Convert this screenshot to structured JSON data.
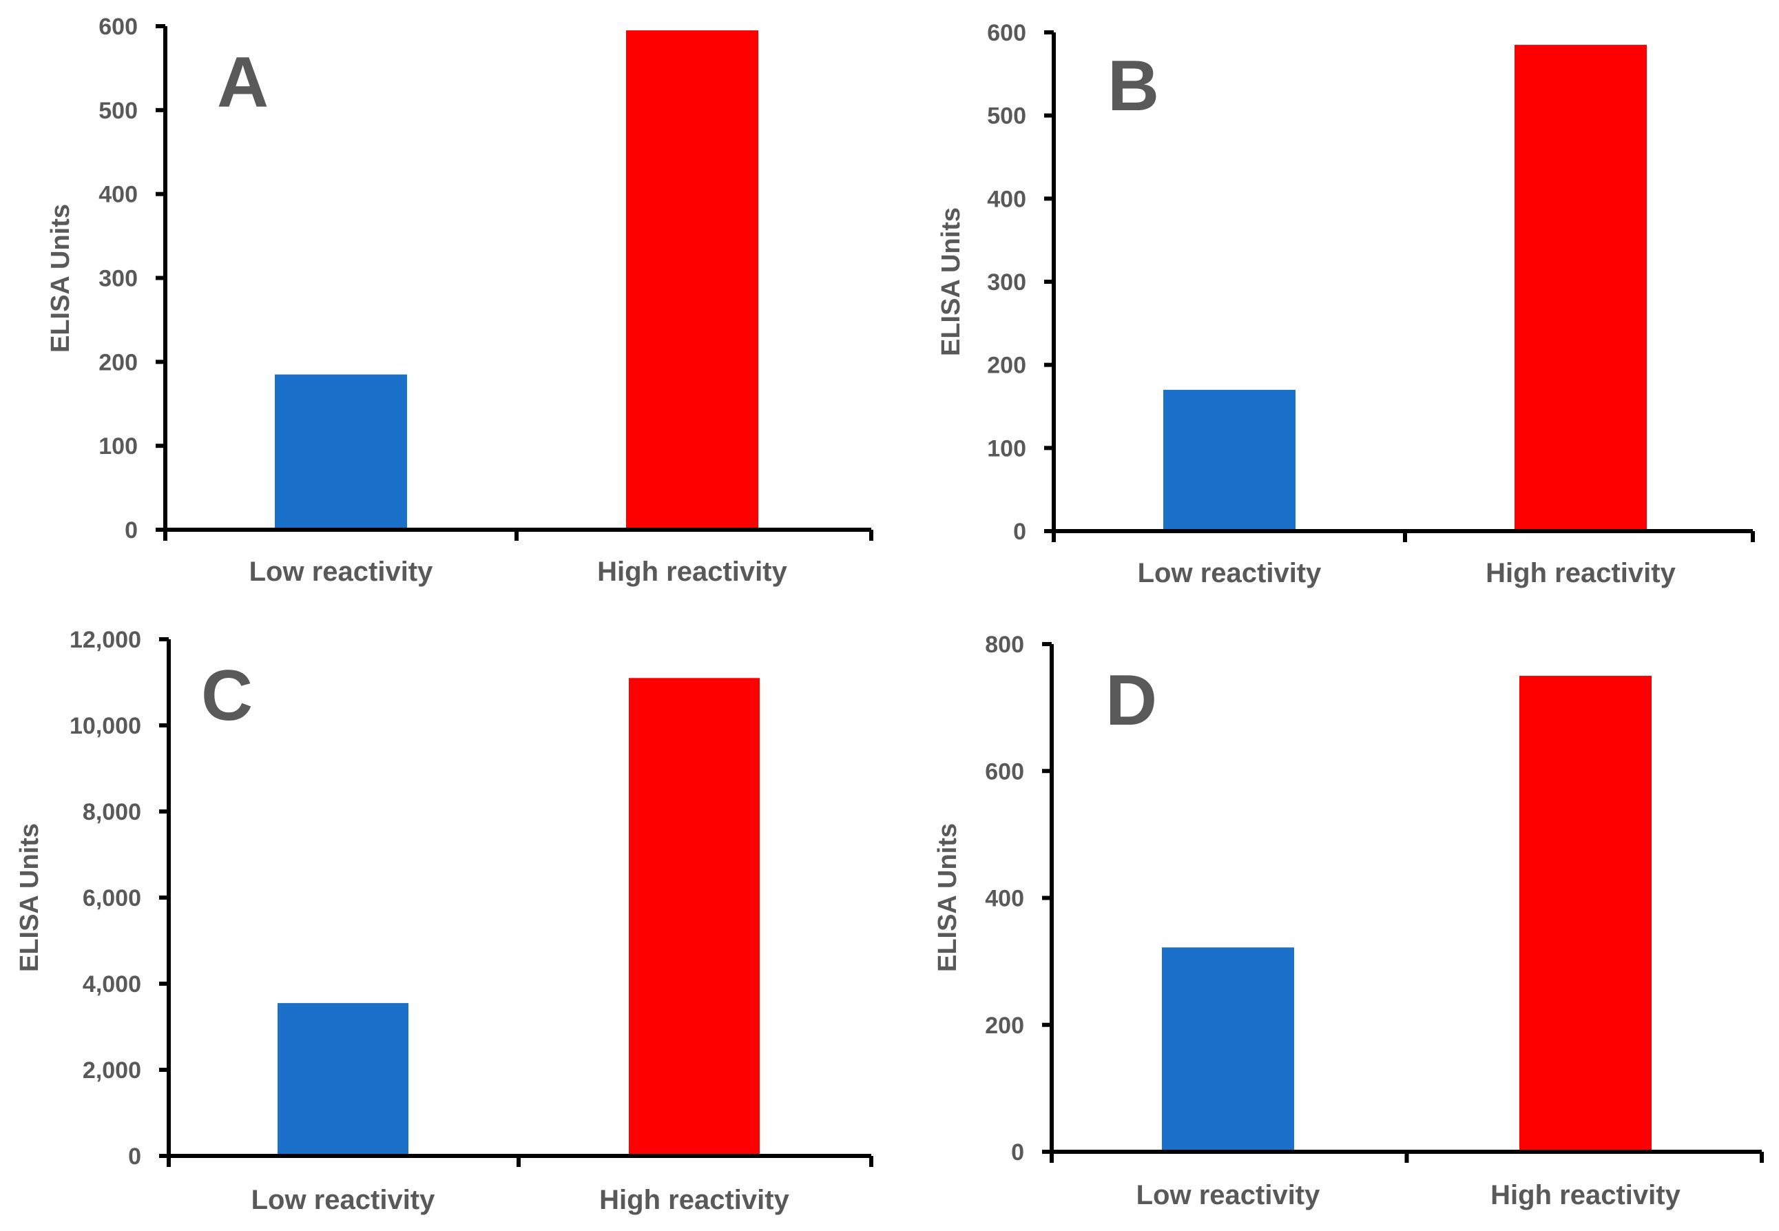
{
  "colors": {
    "low": "#1b70c9",
    "high": "#ff0000",
    "text": "#595959",
    "axis": "#000000"
  },
  "chart_data": [
    {
      "type": "bar",
      "panel": "A",
      "categories": [
        "Low reactivity",
        "High reactivity"
      ],
      "values": [
        185,
        595
      ],
      "ylabel": "ELISA Units",
      "ylim": [
        0,
        600
      ],
      "yticks": [
        0,
        100,
        200,
        300,
        400,
        500,
        600
      ],
      "ytick_labels": [
        "0",
        "100",
        "200",
        "300",
        "400",
        "500",
        "600"
      ]
    },
    {
      "type": "bar",
      "panel": "B",
      "categories": [
        "Low reactivity",
        "High reactivity"
      ],
      "values": [
        170,
        585
      ],
      "ylabel": "ELISA Units",
      "ylim": [
        0,
        600
      ],
      "yticks": [
        0,
        100,
        200,
        300,
        400,
        500,
        600
      ],
      "ytick_labels": [
        "0",
        "100",
        "200",
        "300",
        "400",
        "500",
        "600"
      ]
    },
    {
      "type": "bar",
      "panel": "C",
      "categories": [
        "Low reactivity",
        "High reactivity"
      ],
      "values": [
        3550,
        11100
      ],
      "ylabel": "ELISA Units",
      "ylim": [
        0,
        12000
      ],
      "yticks": [
        0,
        2000,
        4000,
        6000,
        8000,
        10000,
        12000
      ],
      "ytick_labels": [
        "0",
        "2,000",
        "4,000",
        "6,000",
        "8,000",
        "10,000",
        "12,000"
      ]
    },
    {
      "type": "bar",
      "panel": "D",
      "categories": [
        "Low reactivity",
        "High reactivity"
      ],
      "values": [
        322,
        750
      ],
      "ylabel": "ELISA Units",
      "ylim": [
        0,
        800
      ],
      "yticks": [
        0,
        200,
        400,
        600,
        800
      ],
      "ytick_labels": [
        "0",
        "200",
        "400",
        "600",
        "800"
      ]
    }
  ]
}
